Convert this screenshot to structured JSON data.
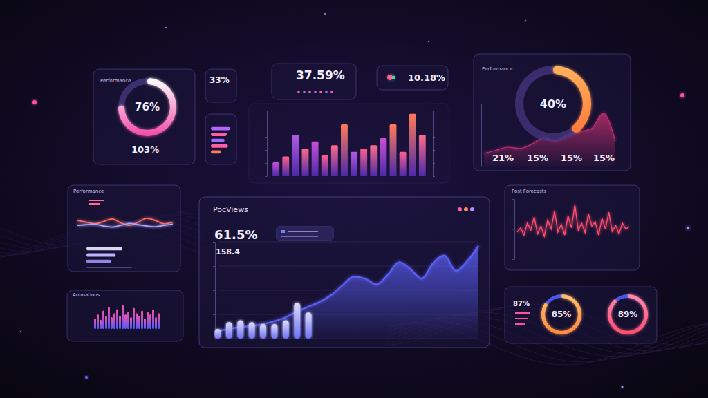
{
  "chart_data": [
    {
      "type": "gauge",
      "title": "Performance",
      "values": [
        76
      ],
      "value_labels": [
        "76%"
      ],
      "ylim": [
        0,
        100
      ],
      "color": "#f24ba6",
      "annotations": [
        "103%"
      ]
    },
    {
      "type": "kpi",
      "annotations": [
        "33%"
      ]
    },
    {
      "type": "bar",
      "orientation": "horizontal",
      "categories": [
        null,
        null,
        null,
        null,
        null
      ],
      "values": [
        85,
        70,
        60,
        75,
        45
      ],
      "xlim": [
        0,
        100
      ],
      "tick_labels": false,
      "colors": [
        "#b266ff",
        "#ff5fa2",
        "#9d6bff",
        "#ff5fa2",
        "#ff7a59"
      ]
    },
    {
      "type": "kpi",
      "annotations": [
        "37.59%"
      ]
    },
    {
      "type": "kpi",
      "annotations": [
        "10.18%"
      ]
    },
    {
      "type": "bar",
      "categories": [
        null,
        null,
        null,
        null,
        null,
        null,
        null,
        null,
        null,
        null,
        null,
        null,
        null,
        null,
        null,
        null
      ],
      "values": [
        21,
        30,
        63,
        42,
        53,
        32,
        47,
        79,
        37,
        42,
        47,
        58,
        79,
        37,
        95,
        63
      ],
      "ylim": [
        0,
        100
      ],
      "yticks": [
        0,
        20,
        40,
        60,
        80,
        100
      ],
      "tick_labels": false,
      "grid": false,
      "colors": [
        "#c94fd6",
        "#ff5f8f",
        "#b25ae0",
        "#ff6a88",
        "#c94fd6",
        "#ff5f8f",
        "#ff6a88",
        "#ff7a59",
        "#b25ae0",
        "#ff5f8f",
        "#ff6a88",
        "#c94fd6",
        "#ff7a59",
        "#ff5f8f",
        "#ff7a59",
        "#ff6a88"
      ]
    },
    {
      "type": "area",
      "categories": [
        null,
        null,
        null,
        null,
        null,
        null,
        null,
        null,
        null,
        null,
        null,
        null
      ],
      "values": [
        20,
        25,
        30,
        28,
        35,
        45,
        40,
        50,
        55,
        60,
        85,
        40
      ],
      "ylim": [
        0,
        100
      ],
      "tick_labels": false,
      "color": "#c2306f"
    },
    {
      "type": "gauge",
      "title": "Performance",
      "values": [
        40
      ],
      "value_labels": [
        "40%"
      ],
      "ylim": [
        0,
        100
      ],
      "color": "#ff7a3d",
      "annotations": [
        "21%",
        "15%",
        "15%",
        "15%"
      ]
    },
    {
      "type": "line",
      "title": "Performance",
      "categories": [
        null,
        null,
        null,
        null,
        null,
        null,
        null,
        null,
        null,
        null,
        null,
        null
      ],
      "series": [
        {
          "color": "#ff6a5c",
          "values": [
            55,
            50,
            45,
            52,
            60,
            48,
            40,
            50,
            62,
            55,
            45,
            50
          ]
        },
        {
          "color": "#a8a6ff",
          "values": [
            40,
            42,
            44,
            38,
            35,
            40,
            46,
            42,
            38,
            36,
            40,
            44
          ]
        }
      ],
      "ylim": [
        0,
        100
      ],
      "tick_labels": false
    },
    {
      "type": "bar",
      "orientation": "horizontal",
      "categories": [
        null,
        null,
        null
      ],
      "values": [
        80,
        65,
        55
      ],
      "xlim": [
        0,
        100
      ],
      "tick_labels": false,
      "colors": [
        "#d8d6f5",
        "#b9b4ff",
        "#8f86e8"
      ]
    },
    {
      "type": "bar",
      "title": "Animations",
      "categories": [
        null,
        null,
        null,
        null,
        null,
        null,
        null,
        null,
        null,
        null,
        null,
        null,
        null,
        null,
        null,
        null,
        null,
        null,
        null,
        null,
        null,
        null,
        null,
        null
      ],
      "values": [
        40,
        55,
        35,
        70,
        50,
        85,
        45,
        60,
        75,
        50,
        90,
        55,
        65,
        45,
        80,
        60,
        50,
        70,
        40,
        65,
        55,
        75,
        45,
        60
      ],
      "ylim": [
        0,
        100
      ],
      "tick_labels": false,
      "color": "#ff4fa3"
    },
    {
      "type": "area",
      "title": "PocViews",
      "annotations": [
        "61.5%",
        "158.4"
      ],
      "categories": [
        null,
        null,
        null,
        null,
        null,
        null,
        null,
        null,
        null,
        null,
        null,
        null,
        null,
        null,
        null,
        null,
        null,
        null,
        null,
        null,
        null,
        null,
        null,
        null
      ],
      "series": [
        {
          "type": "area",
          "color": "#5a5ff5",
          "values": [
            8,
            10,
            12,
            13,
            15,
            18,
            22,
            28,
            33,
            38,
            45,
            55,
            64,
            62,
            56,
            66,
            79,
            72,
            62,
            78,
            86,
            70,
            80,
            96
          ]
        },
        {
          "type": "bar",
          "color": "#dcdcff",
          "values": [
            10,
            17,
            19,
            17,
            15,
            15,
            19,
            37,
            27,
            null,
            null,
            null,
            null,
            null,
            null,
            null,
            null,
            null,
            null,
            null,
            null,
            null,
            null,
            null
          ]
        }
      ],
      "ylim": [
        0,
        100
      ],
      "yticks": [
        0,
        25,
        50,
        75,
        100
      ],
      "grid": true,
      "tick_labels": false
    },
    {
      "type": "line",
      "title": "Post Forecasts",
      "categories": [
        null,
        null,
        null,
        null,
        null,
        null,
        null,
        null,
        null,
        null,
        null,
        null,
        null,
        null,
        null,
        null,
        null,
        null,
        null,
        null,
        null,
        null,
        null,
        null,
        null,
        null,
        null,
        null,
        null,
        null,
        null,
        null,
        null,
        null
      ],
      "values": [
        45,
        52,
        40,
        60,
        48,
        70,
        42,
        55,
        38,
        65,
        50,
        80,
        45,
        58,
        40,
        72,
        52,
        90,
        48,
        60,
        44,
        75,
        55,
        62,
        40,
        68,
        50,
        78,
        46,
        56,
        42,
        60,
        50,
        54
      ],
      "ylim": [
        0,
        100
      ],
      "yticks": [
        0,
        50,
        100
      ],
      "tick_labels": false,
      "color": "#ff4d6d"
    },
    {
      "type": "gauge",
      "values": [
        85
      ],
      "value_labels": [
        "85%"
      ],
      "ylim": [
        0,
        100
      ],
      "color": "#ff8a3d"
    },
    {
      "type": "gauge",
      "values": [
        89
      ],
      "value_labels": [
        "89%"
      ],
      "ylim": [
        0,
        100
      ],
      "color": "#ff4d6d"
    },
    {
      "type": "kpi",
      "annotations": [
        "87%"
      ]
    }
  ]
}
